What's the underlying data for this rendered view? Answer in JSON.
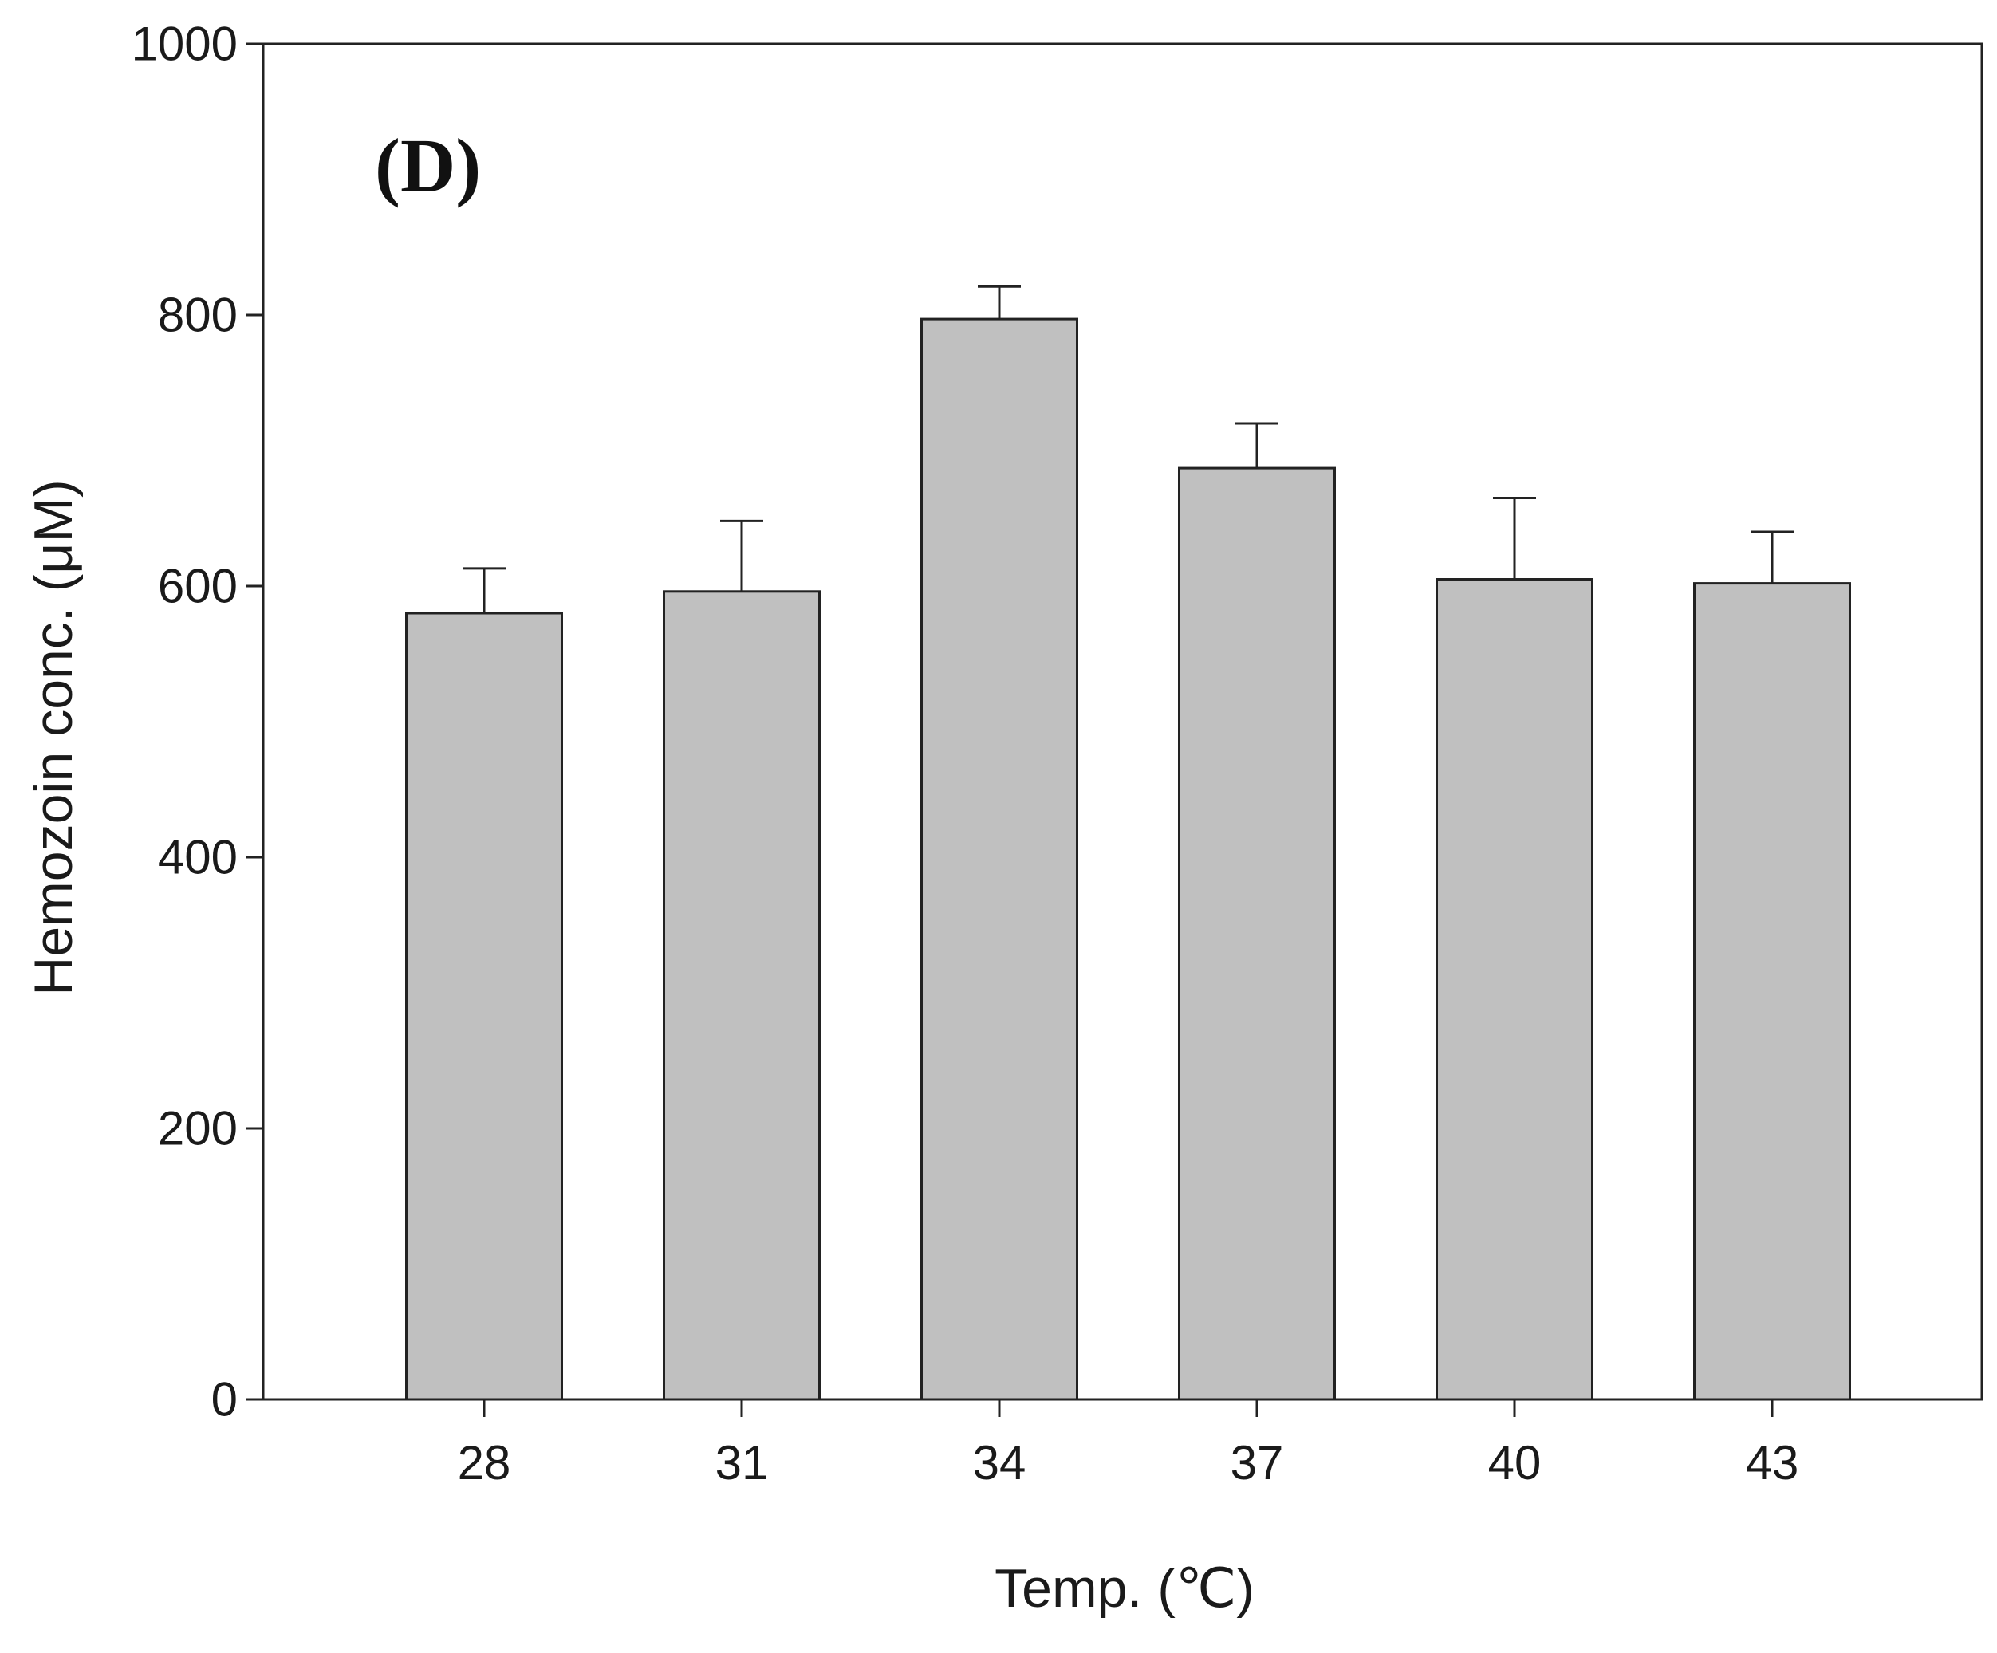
{
  "chart_data": {
    "type": "bar",
    "panel_label": "(D)",
    "title": "",
    "xlabel": "Temp. (℃)",
    "ylabel": "Hemozoin conc. (μM)",
    "categories": [
      "28",
      "31",
      "34",
      "37",
      "40",
      "43"
    ],
    "values": [
      580,
      596,
      797,
      687,
      605,
      602
    ],
    "errors": [
      33,
      52,
      24,
      33,
      60,
      38
    ],
    "ylim": [
      0,
      1000
    ],
    "yticks": [
      0,
      200,
      400,
      600,
      800,
      1000
    ],
    "ytick_labels": [
      "0",
      "200",
      "400",
      "600",
      "800",
      "1000"
    ],
    "grid": false,
    "colors": {
      "bar_fill": "#c0c0c0",
      "bar_stroke": "#222222",
      "axis": "#222222"
    }
  }
}
